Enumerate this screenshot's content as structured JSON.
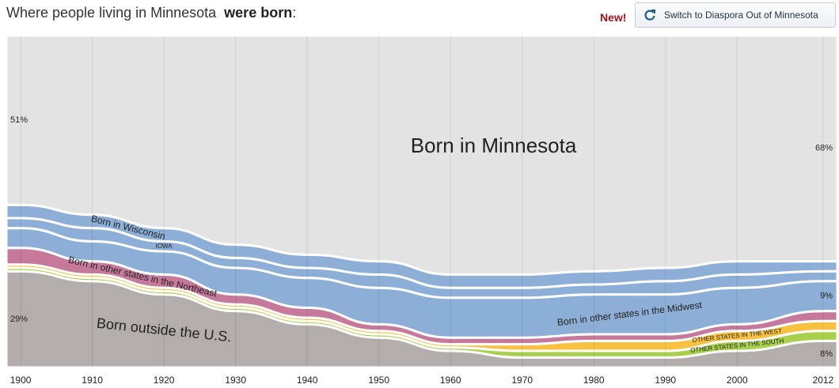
{
  "header": {
    "title_prefix": "Where people living in Minnesota",
    "title_bold": "were born",
    "title_suffix": ":",
    "badge": "New!",
    "button": "Switch to Diaspora Out of Minnesota"
  },
  "chart_data": {
    "type": "stacked-area",
    "x": [
      1900,
      1910,
      1920,
      1930,
      1940,
      1950,
      1960,
      1970,
      1980,
      1990,
      2000,
      2012
    ],
    "xlim": [
      1898,
      2014
    ],
    "xticks": [
      1900,
      1910,
      1920,
      1930,
      1940,
      1950,
      1960,
      1970,
      1980,
      1990,
      2000,
      2012
    ],
    "ylim": [
      0,
      100
    ],
    "grid": true,
    "series": [
      {
        "name": "Born outside the U.S.",
        "color": "#b3aeab",
        "values": [
          29,
          26,
          22,
          17,
          13,
          9,
          5,
          3,
          3,
          3,
          5,
          8
        ],
        "value_labels": [
          "29%",
          null,
          null,
          null,
          null,
          null,
          null,
          null,
          null,
          null,
          null,
          "8%"
        ]
      },
      {
        "name": "OTHER STATES IN THE SOUTH",
        "color": "#a9d04d",
        "values": [
          1,
          1,
          1,
          1,
          1,
          1,
          1,
          2,
          2,
          2,
          3,
          3
        ]
      },
      {
        "name": "OTHER STATES IN THE WEST",
        "color": "#f7c142",
        "values": [
          1,
          1,
          1,
          1,
          1,
          1,
          1,
          2,
          3,
          3,
          3,
          3
        ]
      },
      {
        "name": "Born in other states in the Northeast",
        "color": "#c6799a",
        "values": [
          5,
          4,
          4,
          3,
          3,
          2,
          2,
          2,
          2,
          2,
          2,
          3
        ]
      },
      {
        "name": "Born in other states in the Midwest",
        "color": "#8daed6",
        "values": [
          6,
          6,
          7,
          8,
          9,
          11,
          12,
          12,
          12,
          12,
          11,
          9
        ],
        "value_labels": [
          null,
          null,
          null,
          null,
          null,
          null,
          null,
          null,
          null,
          null,
          null,
          "9%"
        ]
      },
      {
        "name": "IOWA",
        "color": "#8daed6",
        "values": [
          3,
          4,
          3,
          3,
          3,
          4,
          3,
          3,
          3,
          4,
          4,
          3
        ]
      },
      {
        "name": "Born in Wisconsin",
        "color": "#8daed6",
        "values": [
          4,
          4,
          4,
          4,
          4,
          4,
          4,
          4,
          4,
          4,
          4,
          3
        ]
      },
      {
        "name": "Born in Minnesota",
        "color": "#e3e3e3",
        "values": [
          51,
          54,
          58,
          63,
          66,
          68,
          72,
          72,
          71,
          70,
          68,
          68
        ],
        "value_labels": [
          "51%",
          null,
          null,
          null,
          null,
          null,
          null,
          null,
          null,
          null,
          null,
          "68%"
        ]
      }
    ]
  }
}
